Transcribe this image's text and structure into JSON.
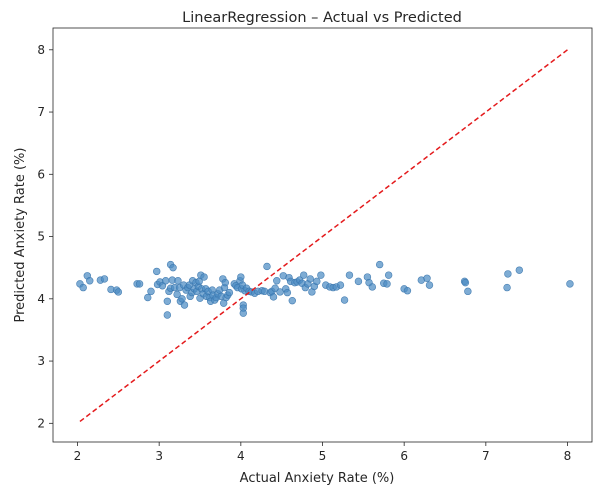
{
  "chart_data": {
    "type": "scatter",
    "title": "LinearRegression – Actual vs Predicted",
    "xlabel": "Actual Anxiety Rate (%)",
    "ylabel": "Predicted Anxiety Rate (%)",
    "xlim": [
      1.7,
      8.3
    ],
    "ylim": [
      1.7,
      8.35
    ],
    "xticks": [
      2,
      3,
      4,
      5,
      6,
      7,
      8
    ],
    "yticks": [
      2,
      3,
      4,
      5,
      6,
      7,
      8
    ],
    "grid": false,
    "colors": {
      "points": "#4c8cc4",
      "point_edge": "#3a75ad",
      "reference_line": "#e41a1c"
    },
    "reference_line": {
      "style": "dashed",
      "x": [
        2.03,
        8.0
      ],
      "y": [
        2.03,
        8.0
      ]
    },
    "series": [
      {
        "points": [
          [
            2.03,
            4.24
          ],
          [
            2.07,
            4.18
          ],
          [
            2.12,
            4.37
          ],
          [
            2.15,
            4.29
          ],
          [
            2.28,
            4.3
          ],
          [
            2.33,
            4.32
          ],
          [
            2.41,
            4.15
          ],
          [
            2.48,
            4.14
          ],
          [
            2.5,
            4.11
          ],
          [
            2.73,
            4.24
          ],
          [
            2.76,
            4.24
          ],
          [
            2.86,
            4.02
          ],
          [
            2.9,
            4.12
          ],
          [
            2.97,
            4.44
          ],
          [
            2.98,
            4.23
          ],
          [
            3.01,
            4.27
          ],
          [
            3.04,
            4.21
          ],
          [
            3.08,
            4.29
          ],
          [
            3.1,
            3.96
          ],
          [
            3.1,
            3.74
          ],
          [
            3.12,
            4.12
          ],
          [
            3.14,
            4.55
          ],
          [
            3.14,
            4.17
          ],
          [
            3.16,
            4.3
          ],
          [
            3.17,
            4.5
          ],
          [
            3.19,
            4.18
          ],
          [
            3.22,
            4.07
          ],
          [
            3.23,
            4.29
          ],
          [
            3.25,
            4.18
          ],
          [
            3.26,
            3.96
          ],
          [
            3.28,
            4.0
          ],
          [
            3.3,
            4.22
          ],
          [
            3.31,
            3.9
          ],
          [
            3.33,
            4.14
          ],
          [
            3.35,
            4.18
          ],
          [
            3.37,
            4.22
          ],
          [
            3.38,
            4.04
          ],
          [
            3.4,
            4.1
          ],
          [
            3.41,
            4.29
          ],
          [
            3.43,
            4.16
          ],
          [
            3.45,
            4.26
          ],
          [
            3.46,
            4.12
          ],
          [
            3.48,
            4.2
          ],
          [
            3.49,
            4.28
          ],
          [
            3.5,
            4.01
          ],
          [
            3.51,
            4.38
          ],
          [
            3.52,
            4.16
          ],
          [
            3.54,
            4.08
          ],
          [
            3.55,
            4.35
          ],
          [
            3.57,
            4.16
          ],
          [
            3.58,
            4.04
          ],
          [
            3.6,
            4.12
          ],
          [
            3.62,
            4.02
          ],
          [
            3.63,
            3.96
          ],
          [
            3.65,
            4.14
          ],
          [
            3.66,
            4.06
          ],
          [
            3.68,
            3.98
          ],
          [
            3.7,
            4.02
          ],
          [
            3.72,
            4.08
          ],
          [
            3.74,
            4.14
          ],
          [
            3.76,
            4.04
          ],
          [
            3.78,
            4.32
          ],
          [
            3.79,
            3.93
          ],
          [
            3.8,
            4.18
          ],
          [
            3.81,
            4.26
          ],
          [
            3.82,
            4.02
          ],
          [
            3.84,
            4.06
          ],
          [
            3.86,
            4.1
          ],
          [
            3.92,
            4.24
          ],
          [
            3.94,
            4.21
          ],
          [
            3.96,
            4.18
          ],
          [
            3.99,
            4.29
          ],
          [
            4.0,
            4.35
          ],
          [
            4.01,
            4.16
          ],
          [
            4.02,
            4.22
          ],
          [
            4.03,
            3.9
          ],
          [
            4.03,
            3.85
          ],
          [
            4.03,
            3.77
          ],
          [
            4.05,
            4.13
          ],
          [
            4.07,
            4.17
          ],
          [
            4.1,
            4.12
          ],
          [
            4.13,
            4.11
          ],
          [
            4.17,
            4.09
          ],
          [
            4.21,
            4.12
          ],
          [
            4.26,
            4.13
          ],
          [
            4.29,
            4.12
          ],
          [
            4.32,
            4.52
          ],
          [
            4.36,
            4.1
          ],
          [
            4.38,
            4.12
          ],
          [
            4.4,
            4.03
          ],
          [
            4.42,
            4.17
          ],
          [
            4.44,
            4.29
          ],
          [
            4.48,
            4.11
          ],
          [
            4.52,
            4.37
          ],
          [
            4.55,
            4.16
          ],
          [
            4.57,
            4.1
          ],
          [
            4.59,
            4.34
          ],
          [
            4.61,
            4.28
          ],
          [
            4.63,
            3.97
          ],
          [
            4.66,
            4.26
          ],
          [
            4.69,
            4.27
          ],
          [
            4.72,
            4.3
          ],
          [
            4.75,
            4.25
          ],
          [
            4.77,
            4.38
          ],
          [
            4.79,
            4.18
          ],
          [
            4.82,
            4.24
          ],
          [
            4.85,
            4.32
          ],
          [
            4.87,
            4.11
          ],
          [
            4.9,
            4.2
          ],
          [
            4.93,
            4.28
          ],
          [
            4.98,
            4.38
          ],
          [
            5.04,
            4.22
          ],
          [
            5.09,
            4.19
          ],
          [
            5.13,
            4.18
          ],
          [
            5.17,
            4.19
          ],
          [
            5.22,
            4.22
          ],
          [
            5.27,
            3.98
          ],
          [
            5.33,
            4.38
          ],
          [
            5.44,
            4.28
          ],
          [
            5.55,
            4.35
          ],
          [
            5.57,
            4.26
          ],
          [
            5.61,
            4.19
          ],
          [
            5.7,
            4.55
          ],
          [
            5.75,
            4.25
          ],
          [
            5.79,
            4.24
          ],
          [
            5.81,
            4.38
          ],
          [
            6.0,
            4.16
          ],
          [
            6.04,
            4.13
          ],
          [
            6.21,
            4.3
          ],
          [
            6.28,
            4.33
          ],
          [
            6.31,
            4.22
          ],
          [
            6.74,
            4.28
          ],
          [
            6.75,
            4.26
          ],
          [
            6.78,
            4.12
          ],
          [
            7.26,
            4.18
          ],
          [
            7.27,
            4.4
          ],
          [
            7.41,
            4.46
          ],
          [
            8.03,
            4.24
          ]
        ]
      }
    ]
  }
}
